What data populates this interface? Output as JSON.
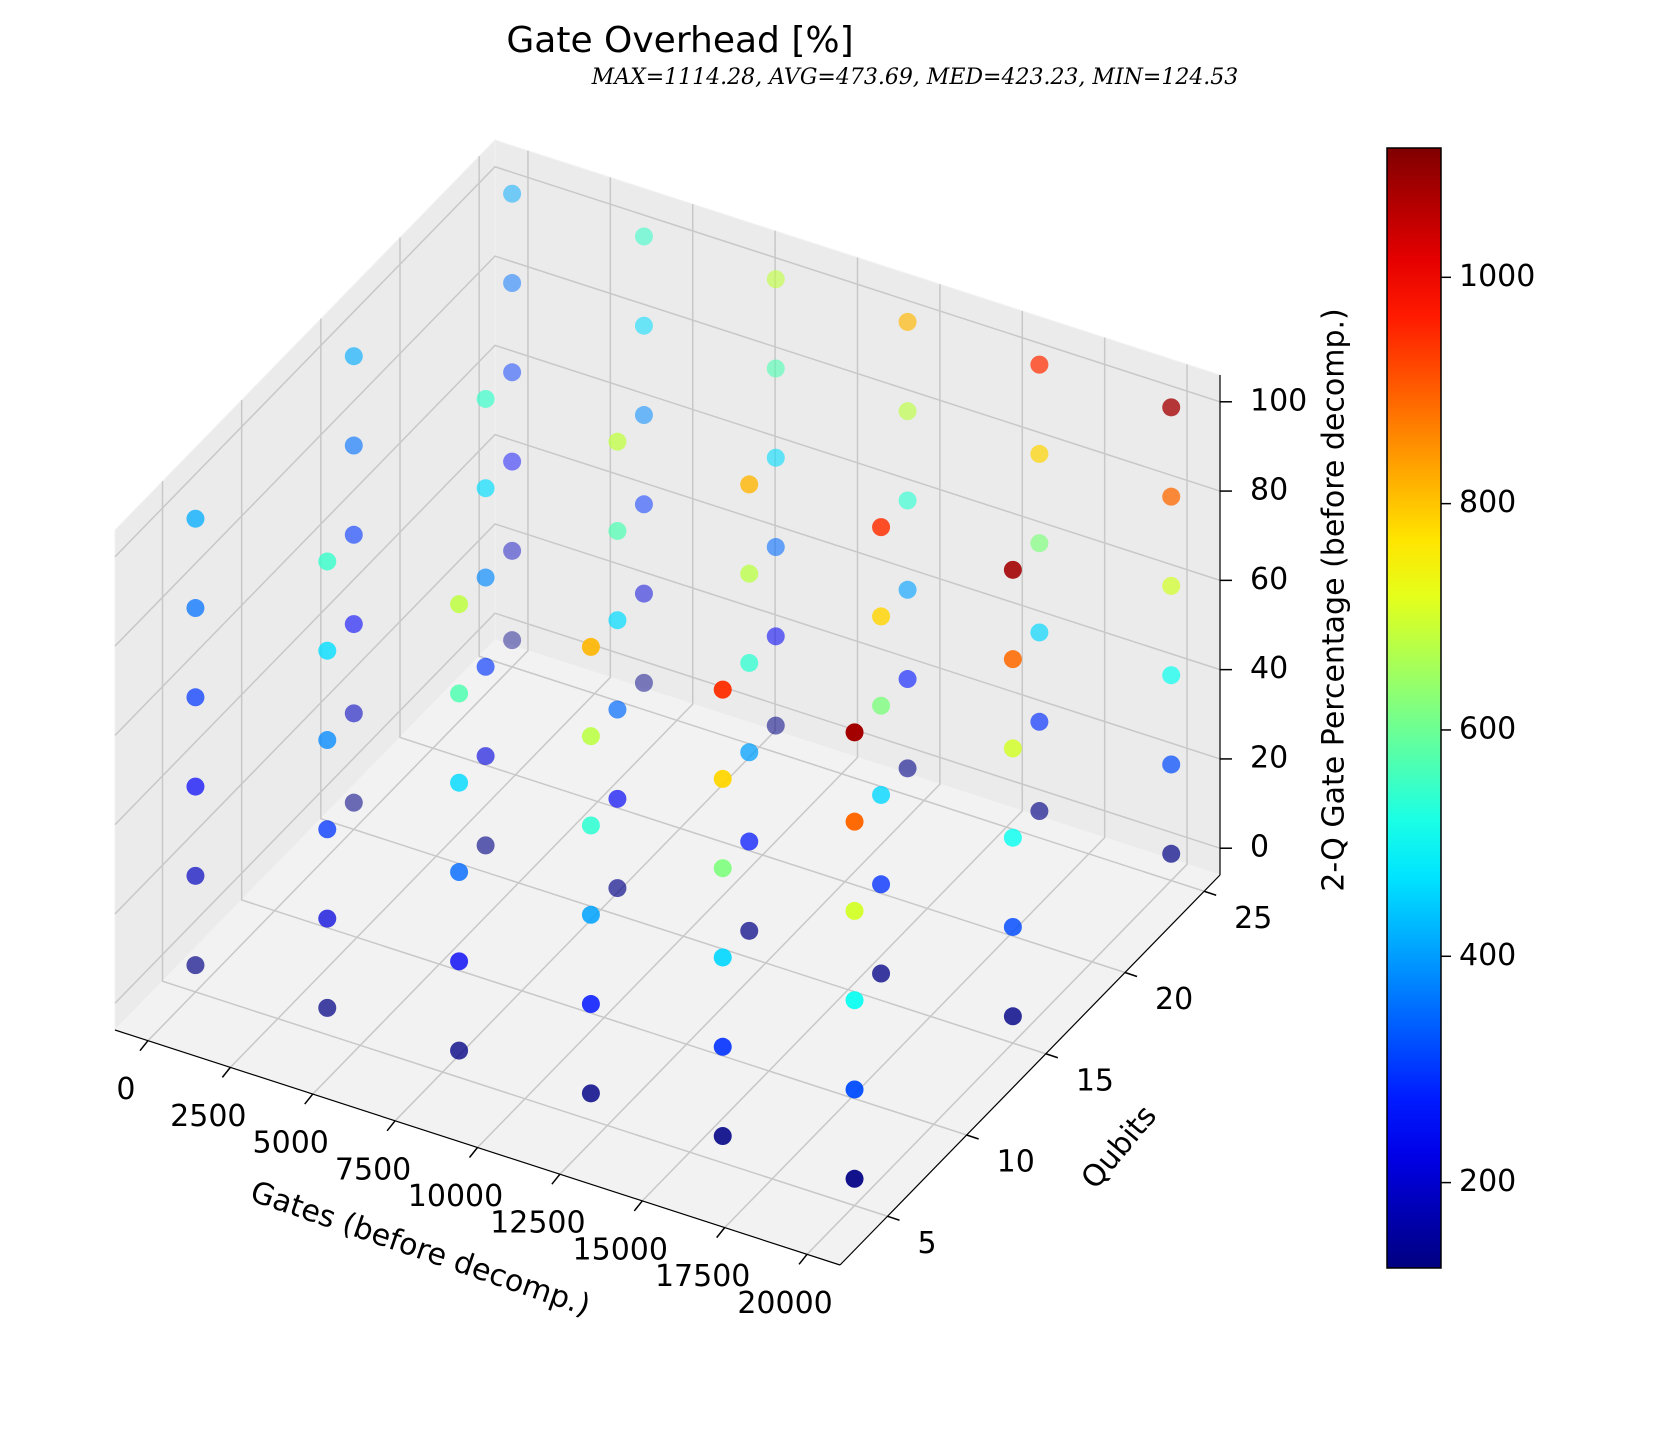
{
  "chart_data": {
    "type": "scatter3d",
    "title": "Gate Overhead [%]",
    "subtitle": "MAX=1114.28, AVG=473.69, MED=423.23, MIN=124.53",
    "xlabel": "Gates (before decomp.)",
    "ylabel": "Qubits",
    "zlabel": "2-Q Gate Percentage (before decomp.)",
    "colormap": "jet",
    "clim": [
      124.53,
      1114.28
    ],
    "cticks": [
      200,
      400,
      600,
      800,
      1000
    ],
    "xlim": [
      -1000,
      21000
    ],
    "xticks": [
      0,
      2500,
      5000,
      7500,
      10000,
      12500,
      15000,
      17500,
      20000
    ],
    "ylim": [
      2,
      26
    ],
    "yticks": [
      5,
      10,
      15,
      20,
      25
    ],
    "zlim": [
      -6,
      106
    ],
    "zticks": [
      0,
      20,
      40,
      60,
      80,
      100
    ],
    "grid": true,
    "x": [
      0,
      0,
      0,
      0,
      0,
      0,
      0,
      0,
      0,
      0,
      0,
      0,
      0,
      0,
      0,
      0,
      0,
      0,
      4000,
      4000,
      4000,
      4000,
      4000,
      4000,
      4000,
      4000,
      4000,
      4000,
      4000,
      4000,
      4000,
      4000,
      4000,
      4000,
      4000,
      4000,
      8000,
      8000,
      8000,
      8000,
      8000,
      8000,
      8000,
      8000,
      8000,
      8000,
      8000,
      8000,
      8000,
      8000,
      8000,
      8000,
      8000,
      8000,
      12000,
      12000,
      12000,
      12000,
      12000,
      12000,
      12000,
      12000,
      12000,
      12000,
      12000,
      12000,
      12000,
      12000,
      12000,
      12000,
      12000,
      12000,
      16000,
      16000,
      16000,
      16000,
      16000,
      16000,
      16000,
      16000,
      16000,
      16000,
      16000,
      16000,
      16000,
      16000,
      16000,
      16000,
      16000,
      16000,
      20000,
      20000,
      20000,
      20000,
      20000,
      20000,
      20000,
      20000,
      20000,
      20000,
      20000,
      20000,
      20000,
      20000,
      20000,
      20000,
      20000,
      20000
    ],
    "y": [
      5,
      5,
      5,
      5,
      5,
      5,
      15,
      15,
      15,
      15,
      15,
      15,
      25,
      25,
      25,
      25,
      25,
      25,
      5,
      5,
      5,
      5,
      5,
      5,
      15,
      15,
      15,
      15,
      15,
      15,
      25,
      25,
      25,
      25,
      25,
      25,
      5,
      5,
      5,
      5,
      5,
      5,
      15,
      15,
      15,
      15,
      15,
      15,
      25,
      25,
      25,
      25,
      25,
      25,
      5,
      5,
      5,
      5,
      5,
      5,
      15,
      15,
      15,
      15,
      15,
      15,
      25,
      25,
      25,
      25,
      25,
      25,
      5,
      5,
      5,
      5,
      5,
      5,
      15,
      15,
      15,
      15,
      15,
      15,
      25,
      25,
      25,
      25,
      25,
      25,
      5,
      5,
      5,
      5,
      5,
      5,
      15,
      15,
      15,
      15,
      15,
      15,
      25,
      25,
      25,
      25,
      25,
      25
    ],
    "z": [
      0,
      20,
      40,
      60,
      80,
      100,
      0,
      20,
      40,
      60,
      80,
      100,
      0,
      20,
      40,
      60,
      80,
      100,
      0,
      20,
      40,
      60,
      80,
      100,
      0,
      20,
      40,
      60,
      80,
      100,
      0,
      20,
      40,
      60,
      80,
      100,
      0,
      20,
      40,
      60,
      80,
      100,
      0,
      20,
      40,
      60,
      80,
      100,
      0,
      20,
      40,
      60,
      80,
      100,
      0,
      20,
      40,
      60,
      80,
      100,
      0,
      20,
      40,
      60,
      80,
      100,
      0,
      20,
      40,
      60,
      80,
      100,
      0,
      20,
      40,
      60,
      80,
      100,
      0,
      20,
      40,
      60,
      80,
      100,
      0,
      20,
      40,
      60,
      80,
      100,
      0,
      20,
      40,
      60,
      80,
      100,
      0,
      20,
      40,
      60,
      80,
      100,
      0,
      20,
      40,
      60,
      80,
      100
    ],
    "values": [
      130,
      187,
      244,
      301,
      358,
      415,
      130,
      187,
      244,
      301,
      358,
      415,
      130,
      187,
      244,
      301,
      358,
      415,
      130,
      214,
      297,
      381,
      464,
      548,
      130,
      214,
      297,
      381,
      464,
      548,
      130,
      214,
      297,
      381,
      464,
      548,
      130,
      240,
      350,
      461,
      571,
      681,
      130,
      240,
      350,
      461,
      571,
      681,
      130,
      240,
      350,
      461,
      571,
      681,
      130,
      267,
      404,
      540,
      677,
      814,
      130,
      267,
      404,
      540,
      677,
      814,
      130,
      267,
      404,
      540,
      677,
      814,
      130,
      293,
      457,
      620,
      784,
      947,
      130,
      293,
      457,
      620,
      784,
      947,
      130,
      293,
      457,
      620,
      784,
      947,
      130,
      320,
      510,
      700,
      890,
      1080,
      130,
      320,
      510,
      700,
      890,
      1080,
      130,
      320,
      510,
      700,
      890,
      1080
    ]
  }
}
